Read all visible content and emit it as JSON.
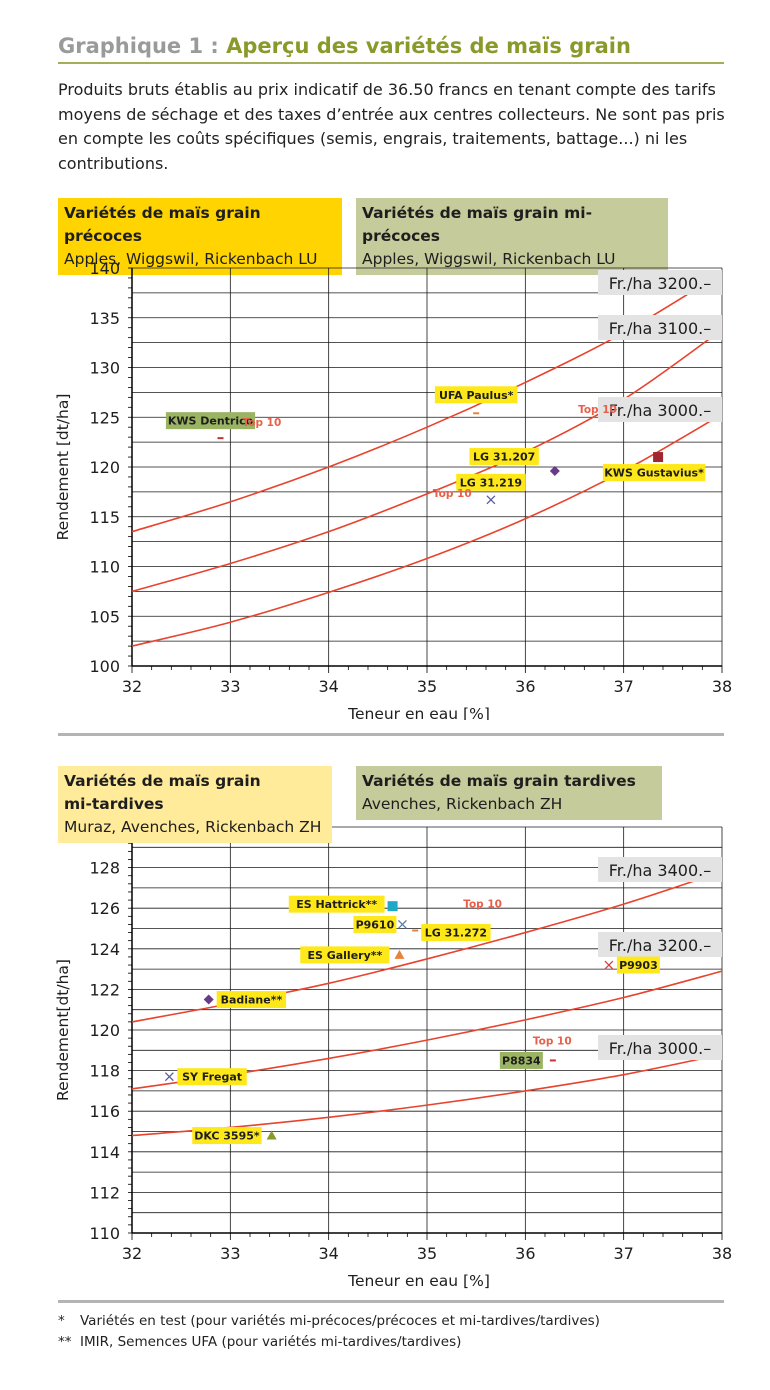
{
  "header": {
    "title_prefix": "Graphique 1 : ",
    "title_main": "Aperçu des variétés de maïs grain",
    "intro": "Produits bruts établis au prix indicatif de 36.50 francs en tenant compte des tarifs moyens de séchage et des taxes d’entrée aux centres collecteurs. Ne sont pas pris en compte les coûts spécifiques (semis, engrais, traitements, battage...) ni les contributions."
  },
  "chart1_boxes": {
    "left_title": "Variétés de maïs grain précoces",
    "left_sub": "Apples, Wiggswil, Rickenbach LU",
    "right_title": "Variétés de maïs grain mi-précoces",
    "right_sub": "Apples, Wiggswil, Rickenbach LU"
  },
  "chart2_boxes": {
    "left_title_1": "Variétés de maïs grain",
    "left_title_2": "mi-tardives",
    "left_sub": "Muraz, Avenches, Rickenbach ZH",
    "right_title": "Variétés  de  maïs  grain  tardives",
    "right_sub": "Avenches, Rickenbach ZH"
  },
  "footnotes": {
    "mark1": "*",
    "text1": "Variétés en test  (pour variétés mi-précoces/précoces et mi-tardives/tardives)",
    "mark2": "**",
    "text2": "IMIR, Semences UFA (pour variétés mi-tardives/tardives)"
  },
  "colors": {
    "curve": "#e8432d",
    "grid": "#1a1a1a",
    "label_yellow": "#ffe81a",
    "label_green": "#9bb464",
    "top10": "#e8604a",
    "iso_label_bg": "#e3e3e3"
  },
  "chart_data": [
    {
      "type": "scatter",
      "title": "Variétés de maïs grain précoces / mi-précoces",
      "xlabel": "Teneur en eau [%]",
      "ylabel": "Rendement [dt/ha]",
      "xlim": [
        32,
        38
      ],
      "ylim": [
        100,
        140
      ],
      "xticks": [
        32,
        33,
        34,
        35,
        36,
        37,
        38
      ],
      "yticks": [
        100,
        105,
        110,
        115,
        120,
        125,
        130,
        135,
        140
      ],
      "grid": true,
      "iso_lines": [
        {
          "label": "Fr./ha 3200.–",
          "points": [
            [
              32,
              113.5
            ],
            [
              33,
              116.5
            ],
            [
              34,
              120.0
            ],
            [
              35,
              124.0
            ],
            [
              36,
              128.5
            ],
            [
              37,
              133.5
            ],
            [
              38,
              139.5
            ]
          ]
        },
        {
          "label": "Fr./ha 3100.–",
          "points": [
            [
              32,
              107.5
            ],
            [
              33,
              110.3
            ],
            [
              34,
              113.5
            ],
            [
              35,
              117.3
            ],
            [
              36,
              121.5
            ],
            [
              37,
              126.8
            ],
            [
              38,
              133.8
            ]
          ]
        },
        {
          "label": "Fr./ha 3000.–",
          "points": [
            [
              32,
              102.0
            ],
            [
              33,
              104.4
            ],
            [
              34,
              107.4
            ],
            [
              35,
              110.8
            ],
            [
              36,
              114.8
            ],
            [
              37,
              119.6
            ],
            [
              38,
              125.3
            ]
          ]
        }
      ],
      "points": [
        {
          "name": "KWS Dentrico",
          "x": 32.9,
          "y": 122.9,
          "marker": "dash",
          "color": "#c83030",
          "label_style": "green",
          "label_side": "above",
          "top10": true
        },
        {
          "name": "UFA Paulus*",
          "x": 35.5,
          "y": 125.4,
          "marker": "dash",
          "color": "#e8843a",
          "label_style": "yellow",
          "label_side": "above",
          "top10": false
        },
        {
          "name": "LG 31.219",
          "x": 35.65,
          "y": 116.7,
          "marker": "x",
          "color": "#5a5aa0",
          "label_style": "yellow",
          "label_side": "above",
          "top10": true
        },
        {
          "name": "LG 31.207",
          "x": 36.3,
          "y": 119.6,
          "marker": "diamond",
          "color": "#6a3a8a",
          "label_style": "yellow",
          "label_side": "left",
          "top10": false
        },
        {
          "name": "KWS Gustavius*",
          "x": 37.35,
          "y": 121.0,
          "marker": "square",
          "color": "#a02830",
          "label_style": "yellow",
          "label_side": "below",
          "top10": true
        }
      ],
      "annotations": [
        "Top 10"
      ]
    },
    {
      "type": "scatter",
      "title": "Variétés de maïs grain mi-tardives / tardives",
      "xlabel": "Teneur en eau [%]",
      "ylabel": "Rendement[dt/ha]",
      "xlim": [
        32,
        38
      ],
      "ylim": [
        110,
        130
      ],
      "xticks": [
        32,
        33,
        34,
        35,
        36,
        37,
        38
      ],
      "yticks": [
        110,
        112,
        114,
        116,
        118,
        120,
        122,
        124,
        126,
        128
      ],
      "grid": true,
      "iso_lines": [
        {
          "label": "Fr./ha 3400.–",
          "points": [
            [
              32,
              120.4
            ],
            [
              33,
              121.3
            ],
            [
              34,
              122.3
            ],
            [
              35,
              123.5
            ],
            [
              36,
              124.8
            ],
            [
              37,
              126.2
            ],
            [
              38,
              127.8
            ]
          ]
        },
        {
          "label": "Fr./ha 3200.–",
          "points": [
            [
              32,
              117.1
            ],
            [
              33,
              117.8
            ],
            [
              34,
              118.6
            ],
            [
              35,
              119.5
            ],
            [
              36,
              120.5
            ],
            [
              37,
              121.6
            ],
            [
              38,
              122.9
            ]
          ]
        },
        {
          "label": "Fr./ha 3000.–",
          "points": [
            [
              32,
              114.8
            ],
            [
              33,
              115.2
            ],
            [
              34,
              115.7
            ],
            [
              35,
              116.3
            ],
            [
              36,
              117.0
            ],
            [
              37,
              117.8
            ],
            [
              38,
              118.8
            ]
          ]
        }
      ],
      "points": [
        {
          "name": "ES Hattrick**",
          "x": 34.65,
          "y": 126.1,
          "marker": "square",
          "color": "#20a8c8",
          "label_style": "yellow",
          "label_side": "left",
          "top10": false
        },
        {
          "name": "P9610",
          "x": 34.75,
          "y": 125.2,
          "marker": "x",
          "color": "#5a7ab0",
          "label_style": "yellow",
          "label_side": "left",
          "top10": false
        },
        {
          "name": "LG 31.272",
          "x": 34.88,
          "y": 124.9,
          "marker": "dash",
          "color": "#e8843a",
          "label_style": "yellow",
          "label_side": "right",
          "top10": true
        },
        {
          "name": "ES Gallery**",
          "x": 34.72,
          "y": 123.7,
          "marker": "triangle",
          "color": "#e8843a",
          "label_style": "yellow",
          "label_side": "left",
          "top10": false
        },
        {
          "name": "P9903",
          "x": 36.85,
          "y": 123.2,
          "marker": "x",
          "color": "#d04040",
          "label_style": "yellow",
          "label_side": "right",
          "top10": false
        },
        {
          "name": "Badiane**",
          "x": 32.78,
          "y": 121.5,
          "marker": "diamond",
          "color": "#6a3a8a",
          "label_style": "yellow",
          "label_side": "right",
          "top10": false
        },
        {
          "name": "P8834",
          "x": 36.28,
          "y": 118.5,
          "marker": "dash",
          "color": "#c83030",
          "label_style": "green",
          "label_side": "left",
          "top10": true
        },
        {
          "name": "SY Fregat",
          "x": 32.38,
          "y": 117.7,
          "marker": "x",
          "color": "#5a5aa0",
          "label_style": "yellow",
          "label_side": "right",
          "top10": false
        },
        {
          "name": "DKC 3595*",
          "x": 33.42,
          "y": 114.8,
          "marker": "triangle",
          "color": "#8a9a2a",
          "label_style": "yellow",
          "label_side": "left",
          "top10": false
        }
      ],
      "annotations": [
        "Top 10"
      ]
    }
  ]
}
